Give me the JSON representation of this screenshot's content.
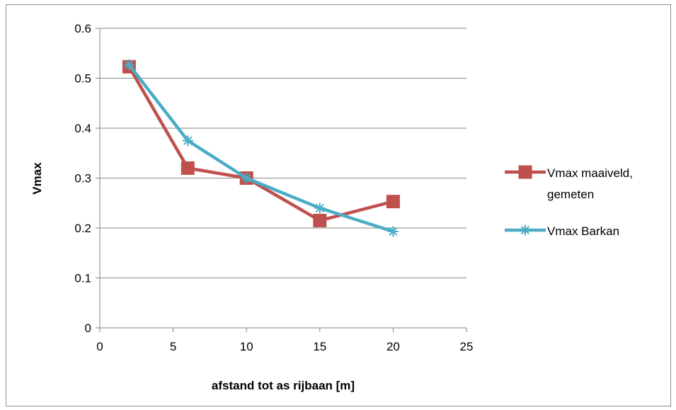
{
  "chart_data": {
    "type": "line",
    "title": "",
    "xlabel": "afstand tot as rijbaan [m]",
    "ylabel": "Vmax",
    "xlim": [
      0,
      25
    ],
    "ylim": [
      0,
      0.6
    ],
    "x_ticks": [
      "0",
      "5",
      "10",
      "15",
      "20",
      "25"
    ],
    "y_ticks": [
      "0",
      "0.1",
      "0.2",
      "0.3",
      "0.4",
      "0.5",
      "0.6"
    ],
    "grid": "horizontal",
    "legend_position": "right",
    "series": [
      {
        "name": "Vmax maaiveld, gemeten",
        "legend_lines": [
          "Vmax maaiveld,",
          "gemeten"
        ],
        "color": "#c0504d",
        "marker": "square",
        "x": [
          2,
          6,
          10,
          15,
          20
        ],
        "y": [
          0.523,
          0.32,
          0.3,
          0.215,
          0.253
        ]
      },
      {
        "name": "Vmax Barkan",
        "legend_lines": [
          "Vmax Barkan"
        ],
        "color": "#4bacc6",
        "marker": "star",
        "x": [
          2,
          6,
          10,
          15,
          20
        ],
        "y": [
          0.527,
          0.375,
          0.3,
          0.24,
          0.193
        ]
      }
    ]
  }
}
